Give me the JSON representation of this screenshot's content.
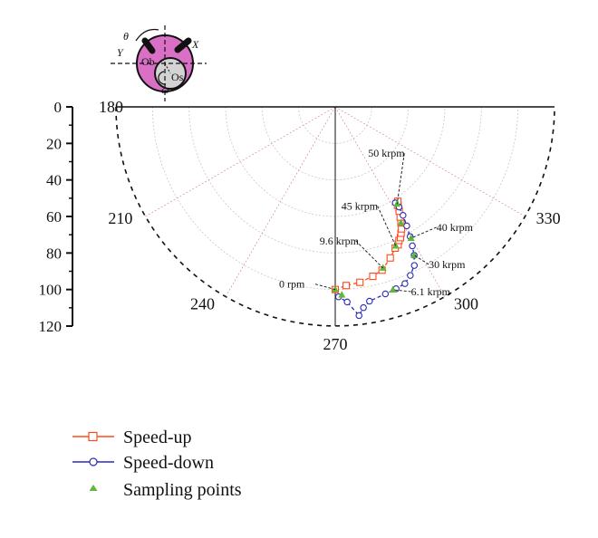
{
  "chart_data": {
    "type": "scatter",
    "coordinate_system": "polar",
    "projection": "lower half-plane",
    "radial_axis": {
      "range": [
        0,
        120
      ],
      "ticks": [
        "0",
        "20",
        "40",
        "60",
        "80",
        "100",
        "120"
      ]
    },
    "angular_axis": {
      "unit": "degrees",
      "ticks": [
        "180",
        "210",
        "240",
        "270",
        "300",
        "330"
      ],
      "grid": true
    },
    "series": [
      {
        "name": "Speed-up",
        "color": "#ff4a1c",
        "marker": "open-square",
        "line": "dashed",
        "points": [
          {
            "theta": 270.0,
            "r": 100
          },
          {
            "theta": 273.5,
            "r": 98
          },
          {
            "theta": 278.0,
            "r": 97
          },
          {
            "theta": 282.5,
            "r": 95
          },
          {
            "theta": 286.0,
            "r": 93
          },
          {
            "theta": 290.0,
            "r": 88
          },
          {
            "theta": 293.0,
            "r": 84
          },
          {
            "theta": 294.5,
            "r": 83
          },
          {
            "theta": 295.5,
            "r": 81
          },
          {
            "theta": 296.5,
            "r": 80
          },
          {
            "theta": 297.5,
            "r": 78
          },
          {
            "theta": 298.5,
            "r": 76
          },
          {
            "theta": 299.5,
            "r": 73
          },
          {
            "theta": 300.5,
            "r": 70
          },
          {
            "theta": 301.5,
            "r": 67
          },
          {
            "theta": 302.5,
            "r": 64
          },
          {
            "theta": 303.5,
            "r": 62
          }
        ]
      },
      {
        "name": "Speed-down",
        "color": "#2b2bb8",
        "marker": "open-circle",
        "line": "dashed",
        "points": [
          {
            "theta": 302.0,
            "r": 62
          },
          {
            "theta": 302.5,
            "r": 65
          },
          {
            "theta": 302.0,
            "r": 70
          },
          {
            "theta": 301.0,
            "r": 76
          },
          {
            "theta": 300.0,
            "r": 82
          },
          {
            "theta": 299.0,
            "r": 87
          },
          {
            "theta": 298.0,
            "r": 92
          },
          {
            "theta": 296.5,
            "r": 97
          },
          {
            "theta": 294.0,
            "r": 101
          },
          {
            "theta": 291.5,
            "r": 104
          },
          {
            "theta": 288.5,
            "r": 105
          },
          {
            "theta": 285.0,
            "r": 106
          },
          {
            "theta": 280.0,
            "r": 108
          },
          {
            "theta": 278.0,
            "r": 111
          },
          {
            "theta": 276.5,
            "r": 115
          },
          {
            "theta": 273.5,
            "r": 107
          },
          {
            "theta": 271.0,
            "r": 104
          }
        ]
      },
      {
        "name": "Sampling points",
        "color": "#5fb83b",
        "marker": "filled-triangle",
        "line": "none",
        "points": [
          {
            "theta": 270.0,
            "r": 100
          },
          {
            "theta": 272.0,
            "r": 103
          },
          {
            "theta": 286.5,
            "r": 92
          },
          {
            "theta": 293.5,
            "r": 83
          },
          {
            "theta": 299.5,
            "r": 73
          },
          {
            "theta": 302.5,
            "r": 63
          },
          {
            "theta": 300.0,
            "r": 83
          },
          {
            "theta": 298.0,
            "r": 92
          },
          {
            "theta": 287.5,
            "r": 105
          }
        ]
      }
    ],
    "annotations": [
      {
        "text": "0 rpm",
        "theta": 270.0,
        "r": 100
      },
      {
        "text": "9.6 krpm",
        "theta": 286.5,
        "r": 92
      },
      {
        "text": "45 krpm",
        "theta": 293.5,
        "r": 83
      },
      {
        "text": "50 krpm",
        "theta": 302.5,
        "r": 63
      },
      {
        "text": "40 krpm",
        "theta": 300.0,
        "r": 83
      },
      {
        "text": "30 krpm",
        "theta": 298.0,
        "r": 92
      },
      {
        "text": "6.1 krpm",
        "theta": 287.5,
        "r": 105
      }
    ],
    "legend": {
      "placement": "bottom-left",
      "entries": [
        "Speed-up",
        "Speed-down",
        "Sampling points"
      ]
    },
    "inset_schematic": {
      "labels": [
        "θ",
        "Y",
        "X",
        "Ob",
        "Os",
        "ω"
      ],
      "disk_color": "#d970c6",
      "inner_color": "#d3d3d3"
    }
  }
}
